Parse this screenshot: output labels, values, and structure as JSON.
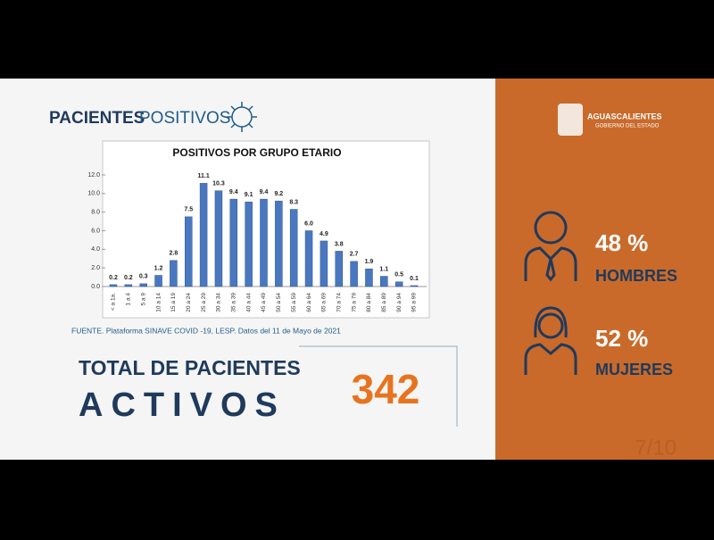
{
  "heading": {
    "bold": "PACIENTES",
    "light": "POSITIVOS"
  },
  "chart_data": {
    "type": "bar",
    "title": "POSITIVOS POR GRUPO ETARIO",
    "categories": [
      "< a 1a.",
      "1 a 4",
      "5 a 9",
      "10 a 14",
      "15 a 19",
      "20 a 24",
      "25 a 29",
      "30 a 34",
      "35 a 39",
      "40 a 44",
      "45 a 49",
      "50 a 54",
      "55 a 59",
      "60 a 64",
      "65 a 69",
      "70 a 74",
      "75 a 79",
      "80 a 84",
      "85 a 89",
      "90 a 94",
      "95 a 99"
    ],
    "values": [
      0.2,
      0.2,
      0.3,
      1.2,
      2.8,
      7.5,
      11.1,
      10.3,
      9.4,
      9.1,
      9.4,
      9.2,
      8.3,
      6.0,
      4.9,
      3.8,
      2.7,
      1.9,
      1.1,
      0.5,
      0.1
    ],
    "value_labels": [
      "0.2",
      "0.2",
      "0.3",
      "1.2",
      "2.8",
      "7.5",
      "11.1",
      "10.3",
      "9.4",
      "9.1",
      "9.4",
      "9.2",
      "8.3",
      "6.0",
      "4.9",
      "3.8",
      "2.7",
      "1.9",
      "1.1",
      "0.5",
      "0.1"
    ],
    "color": "#4a78c0",
    "ylim": [
      0,
      12
    ],
    "yticks": [
      {
        "value": 0,
        "label": "0.0"
      },
      {
        "value": 2,
        "label": "2.0"
      },
      {
        "value": 4,
        "label": "4.0"
      },
      {
        "value": 6,
        "label": "6.0"
      },
      {
        "value": 8,
        "label": "8.0"
      },
      {
        "value": 10,
        "label": "10.0"
      },
      {
        "value": 12,
        "label": "12.0"
      }
    ]
  },
  "source": "FUENTE. Plataforma SINAVE COVID -19, LESP. Datos del 11 de Mayo de 2021",
  "total": {
    "line1": "TOTAL DE PACIENTES",
    "line2": "ACTIVOS",
    "value": 342
  },
  "logo": {
    "name": "AGUASCALIENTES",
    "sub": "GOBIERNO DEL ESTADO"
  },
  "men": {
    "percent": "48 %",
    "label": "HOMBRES"
  },
  "women": {
    "percent": "52 %",
    "label": "MUJERES"
  },
  "page": "7/10"
}
